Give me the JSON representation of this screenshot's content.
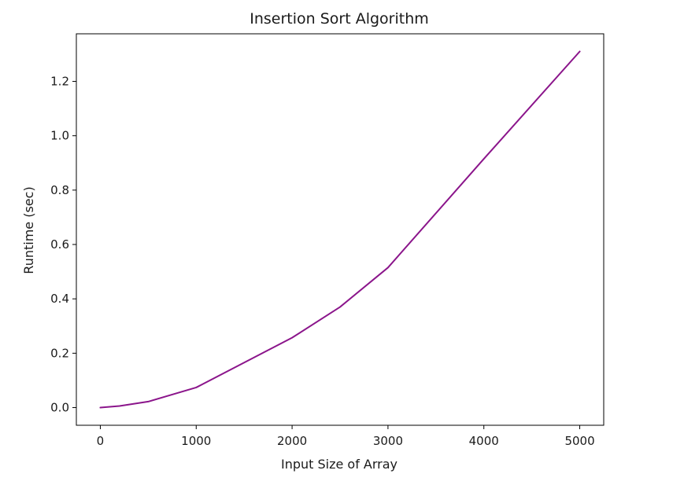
{
  "chart_data": {
    "type": "line",
    "title": "Insertion Sort Algorithm",
    "xlabel": "Input Size of Array",
    "ylabel": "Runtime (sec)",
    "xlim": [
      -250,
      5250
    ],
    "ylim": [
      -0.065,
      1.375
    ],
    "x_ticks": [
      0,
      1000,
      2000,
      3000,
      4000,
      5000
    ],
    "x_tick_labels": [
      "0",
      "1000",
      "2000",
      "3000",
      "4000",
      "5000"
    ],
    "y_ticks": [
      0.0,
      0.2,
      0.4,
      0.6,
      0.8,
      1.0,
      1.2
    ],
    "y_tick_labels": [
      "0.0",
      "0.2",
      "0.4",
      "0.6",
      "0.8",
      "1.0",
      "1.2"
    ],
    "grid": false,
    "legend": "none",
    "series": [
      {
        "color": "#8b158b",
        "x": [
          0,
          200,
          500,
          1000,
          2000,
          2500,
          3000,
          4000,
          5000
        ],
        "y": [
          0.0,
          0.006,
          0.022,
          0.074,
          0.257,
          0.37,
          0.515,
          0.915,
          1.31
        ]
      }
    ]
  }
}
